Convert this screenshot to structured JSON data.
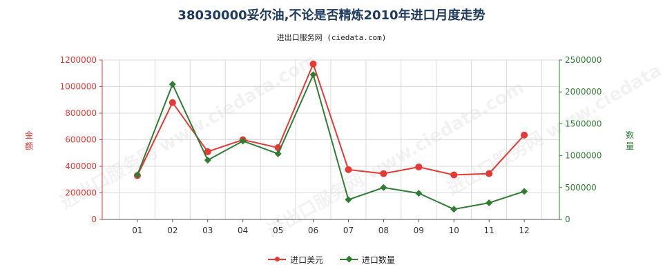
{
  "title": "38030000妥尔油,不论是否精炼2010年进口月度走势",
  "subtitle": "进出口服务网 (ciedata.com)",
  "watermark": "进出口服务网 www.ciedata.com",
  "colors": {
    "amount": "#e53935",
    "quantity": "#2e7d32",
    "title": "#1f3a5f"
  },
  "chart_data": {
    "type": "line",
    "categories": [
      "01",
      "02",
      "03",
      "04",
      "05",
      "06",
      "07",
      "08",
      "09",
      "10",
      "11",
      "12"
    ],
    "y_left": {
      "label": "金额",
      "ylim": [
        0,
        1200000
      ],
      "ticks": [
        "0",
        "200000",
        "400000",
        "600000",
        "800000",
        "1000000",
        "1200000"
      ]
    },
    "y_right": {
      "label": "数量",
      "ylim": [
        0,
        2500000
      ],
      "ticks": [
        "0",
        "500000",
        "1000000",
        "1500000",
        "2000000",
        "2500000"
      ]
    },
    "series": [
      {
        "name": "进口美元",
        "axis": "left",
        "color": "#e53935",
        "marker": "circle",
        "values": [
          330000,
          880000,
          510000,
          600000,
          540000,
          1170000,
          375000,
          345000,
          395000,
          335000,
          345000,
          635000
        ]
      },
      {
        "name": "进口数量",
        "axis": "right",
        "color": "#2e7d32",
        "marker": "diamond",
        "values": [
          700000,
          2120000,
          930000,
          1230000,
          1030000,
          2270000,
          310000,
          500000,
          410000,
          160000,
          260000,
          440000
        ]
      }
    ],
    "grid": true,
    "legend": "bottom"
  }
}
